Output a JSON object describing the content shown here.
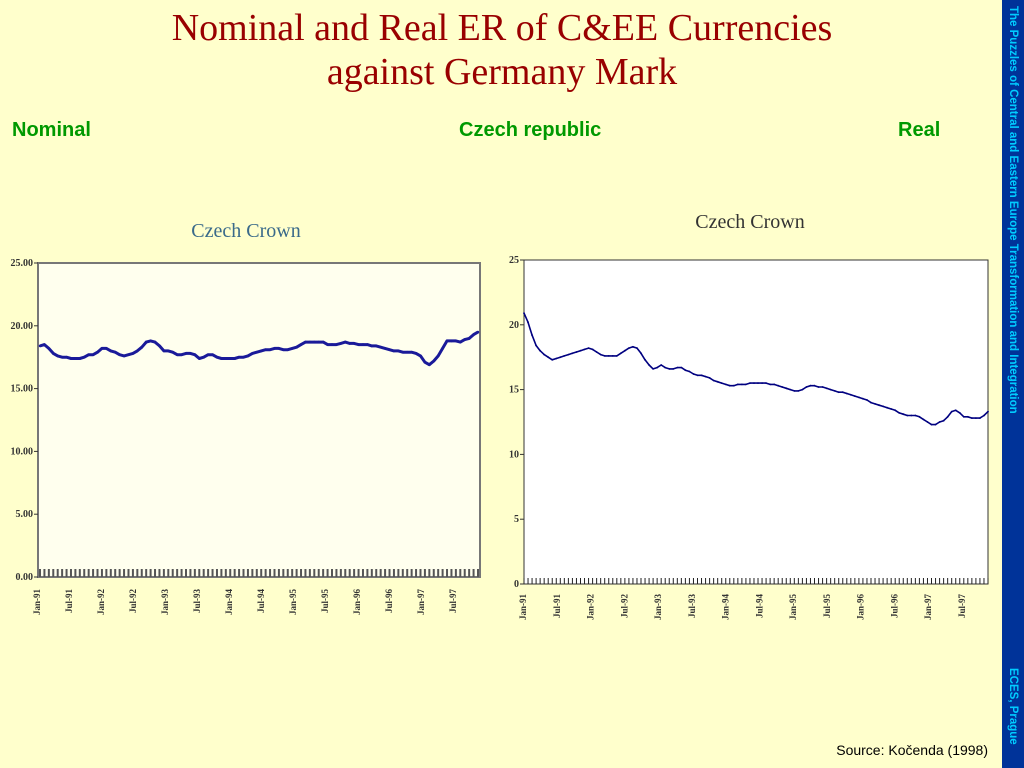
{
  "slide": {
    "title_line1": "Nominal and Real ER of C&EE Currencies",
    "title_line2": "against Germany Mark",
    "label_left": "Nominal",
    "label_center": "Czech republic",
    "label_right": "Real",
    "side_text_top": "The Puzzles of Central and Eastern Europe Transformation and Integration",
    "side_text_bottom": "ECES, Prague",
    "source": "Source: Kočenda (1998)"
  },
  "colors": {
    "background": "#ffffcc",
    "title": "#990000",
    "labels": "#009900",
    "sidebar": "#003399",
    "sidebar_text": "#00ccff",
    "line_left": "#1a1a99",
    "line_right": "#000080"
  },
  "chart_data": [
    {
      "type": "line",
      "title": "Czech Crown",
      "ylim": [
        0,
        25
      ],
      "yticks": [
        "0.00",
        "5.00",
        "10.00",
        "15.00",
        "20.00",
        "25.00"
      ],
      "xticks": [
        "Jan-91",
        "Jul-91",
        "Jan-92",
        "Jul-92",
        "Jan-93",
        "Jul-93",
        "Jan-94",
        "Jul-94",
        "Jan-95",
        "Jul-95",
        "Jan-96",
        "Jul-96",
        "Jan-97",
        "Jul-97"
      ],
      "series": [
        {
          "values": [
            18.4,
            18.5,
            18.2,
            17.8,
            17.6,
            17.5,
            17.5,
            17.4,
            17.4,
            17.4,
            17.5,
            17.7,
            17.7,
            17.9,
            18.2,
            18.2,
            18.0,
            17.9,
            17.7,
            17.6,
            17.7,
            17.8,
            18.0,
            18.3,
            18.7,
            18.8,
            18.7,
            18.4,
            18.0,
            18.0,
            17.9,
            17.7,
            17.7,
            17.8,
            17.8,
            17.7,
            17.4,
            17.5,
            17.7,
            17.7,
            17.5,
            17.4,
            17.4,
            17.4,
            17.4,
            17.5,
            17.5,
            17.6,
            17.8,
            17.9,
            18.0,
            18.1,
            18.1,
            18.2,
            18.2,
            18.1,
            18.1,
            18.2,
            18.3,
            18.5,
            18.7,
            18.7,
            18.7,
            18.7,
            18.7,
            18.5,
            18.5,
            18.5,
            18.6,
            18.7,
            18.6,
            18.6,
            18.5,
            18.5,
            18.5,
            18.4,
            18.4,
            18.3,
            18.2,
            18.1,
            18.0,
            18.0,
            17.9,
            17.9,
            17.9,
            17.8,
            17.6,
            17.1,
            16.9,
            17.2,
            17.6,
            18.2,
            18.8,
            18.8,
            18.8,
            18.7,
            18.9,
            19.0,
            19.3,
            19.5
          ]
        }
      ]
    },
    {
      "type": "line",
      "title": "Czech Crown",
      "ylim": [
        0,
        25
      ],
      "yticks": [
        "0",
        "5",
        "10",
        "15",
        "20",
        "25"
      ],
      "xticks": [
        "Jan-91",
        "Jul-91",
        "Jan-92",
        "Jul-92",
        "Jan-93",
        "Jul-93",
        "Jan-94",
        "Jul-94",
        "Jan-95",
        "Jul-95",
        "Jan-96",
        "Jul-96",
        "Jan-97",
        "Jul-97"
      ],
      "series": [
        {
          "values": [
            20.9,
            20.2,
            19.2,
            18.4,
            18.0,
            17.7,
            17.5,
            17.3,
            17.4,
            17.5,
            17.6,
            17.7,
            17.8,
            17.9,
            18.0,
            18.1,
            18.2,
            18.1,
            17.9,
            17.7,
            17.6,
            17.6,
            17.6,
            17.6,
            17.8,
            18.0,
            18.2,
            18.3,
            18.2,
            17.8,
            17.3,
            16.9,
            16.6,
            16.7,
            16.9,
            16.7,
            16.6,
            16.6,
            16.7,
            16.7,
            16.5,
            16.4,
            16.2,
            16.1,
            16.1,
            16.0,
            15.9,
            15.7,
            15.6,
            15.5,
            15.4,
            15.3,
            15.3,
            15.4,
            15.4,
            15.4,
            15.5,
            15.5,
            15.5,
            15.5,
            15.5,
            15.4,
            15.4,
            15.3,
            15.2,
            15.1,
            15.0,
            14.9,
            14.9,
            15.0,
            15.2,
            15.3,
            15.3,
            15.2,
            15.2,
            15.1,
            15.0,
            14.9,
            14.8,
            14.8,
            14.7,
            14.6,
            14.5,
            14.4,
            14.3,
            14.2,
            14.0,
            13.9,
            13.8,
            13.7,
            13.6,
            13.5,
            13.4,
            13.2,
            13.1,
            13.0,
            13.0,
            13.0,
            12.9,
            12.7,
            12.5,
            12.3,
            12.3,
            12.5,
            12.6,
            12.9,
            13.3,
            13.4,
            13.2,
            12.9,
            12.9,
            12.8,
            12.8,
            12.8,
            13.0,
            13.3
          ]
        }
      ]
    }
  ]
}
